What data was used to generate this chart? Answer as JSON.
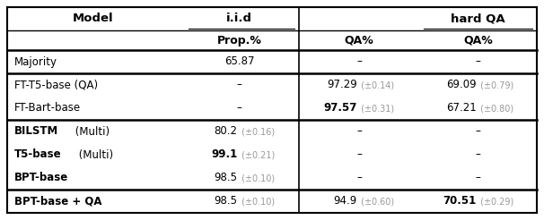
{
  "rows": [
    {
      "model": "Majority",
      "model_bold": false,
      "model_bold_prefix": null,
      "prop": "65.87",
      "prop_err": null,
      "prop_bold": false,
      "iid_qa": "–",
      "iid_qa_err": null,
      "iid_qa_bold": false,
      "hard_qa": "–",
      "hard_qa_err": null,
      "hard_qa_bold": false,
      "sep_above": false
    },
    {
      "model": "FT-T5-base (QA)",
      "model_bold": false,
      "model_bold_prefix": null,
      "prop": "–",
      "prop_err": null,
      "prop_bold": false,
      "iid_qa": "97.29",
      "iid_qa_err": "±0.14",
      "iid_qa_bold": false,
      "hard_qa": "69.09",
      "hard_qa_err": "±0.79",
      "hard_qa_bold": false,
      "sep_above": true
    },
    {
      "model": "FT-Bart-base",
      "model_bold": false,
      "model_bold_prefix": null,
      "prop": "–",
      "prop_err": null,
      "prop_bold": false,
      "iid_qa": "97.57",
      "iid_qa_err": "±0.31",
      "iid_qa_bold": true,
      "hard_qa": "67.21",
      "hard_qa_err": "±0.80",
      "hard_qa_bold": false,
      "sep_above": false
    },
    {
      "model": "BILSTM (Multi)",
      "model_bold": false,
      "model_bold_prefix": "BILSTM",
      "prop": "80.2",
      "prop_err": "±0.16",
      "prop_bold": false,
      "iid_qa": "–",
      "iid_qa_err": null,
      "iid_qa_bold": false,
      "hard_qa": "–",
      "hard_qa_err": null,
      "hard_qa_bold": false,
      "sep_above": true
    },
    {
      "model": "T5-base (Multi)",
      "model_bold": false,
      "model_bold_prefix": "T5-base",
      "prop": "99.1",
      "prop_err": "±0.21",
      "prop_bold": true,
      "iid_qa": "–",
      "iid_qa_err": null,
      "iid_qa_bold": false,
      "hard_qa": "–",
      "hard_qa_err": null,
      "hard_qa_bold": false,
      "sep_above": false
    },
    {
      "model": "BPT-base",
      "model_bold": true,
      "model_bold_prefix": "BPT-base",
      "prop": "98.5",
      "prop_err": "±0.10",
      "prop_bold": false,
      "iid_qa": "–",
      "iid_qa_err": null,
      "iid_qa_bold": false,
      "hard_qa": "–",
      "hard_qa_err": null,
      "hard_qa_bold": false,
      "sep_above": false
    },
    {
      "model": "BPT-base + QA",
      "model_bold": true,
      "model_bold_prefix": "BPT-base + QA",
      "prop": "98.5",
      "prop_err": "±0.10",
      "prop_bold": false,
      "iid_qa": "94.9",
      "iid_qa_err": "±0.60",
      "iid_qa_bold": false,
      "hard_qa": "70.51",
      "hard_qa_err": "±0.29",
      "hard_qa_bold": true,
      "sep_above": true
    }
  ],
  "bg": "#ffffff",
  "fg": "#000000",
  "gray": "#999999"
}
